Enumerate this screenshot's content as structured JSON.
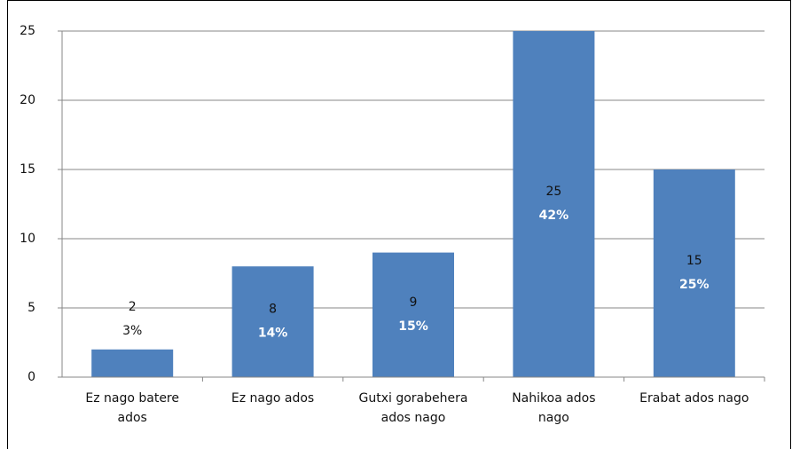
{
  "chart_data": {
    "type": "bar",
    "categories": [
      "Ez nago batere ados",
      "Ez nago ados",
      "Gutxi gorabehera ados nago",
      "Nahikoa ados nago",
      "Erabat ados nago"
    ],
    "values": [
      2,
      8,
      9,
      25,
      15
    ],
    "percent_labels": [
      "3%",
      "14%",
      "15%",
      "42%",
      "25%"
    ],
    "color": "#4f81bd",
    "ylim": [
      0,
      25
    ],
    "yticks": [
      0,
      5,
      10,
      15,
      20,
      25
    ],
    "grid": true
  }
}
